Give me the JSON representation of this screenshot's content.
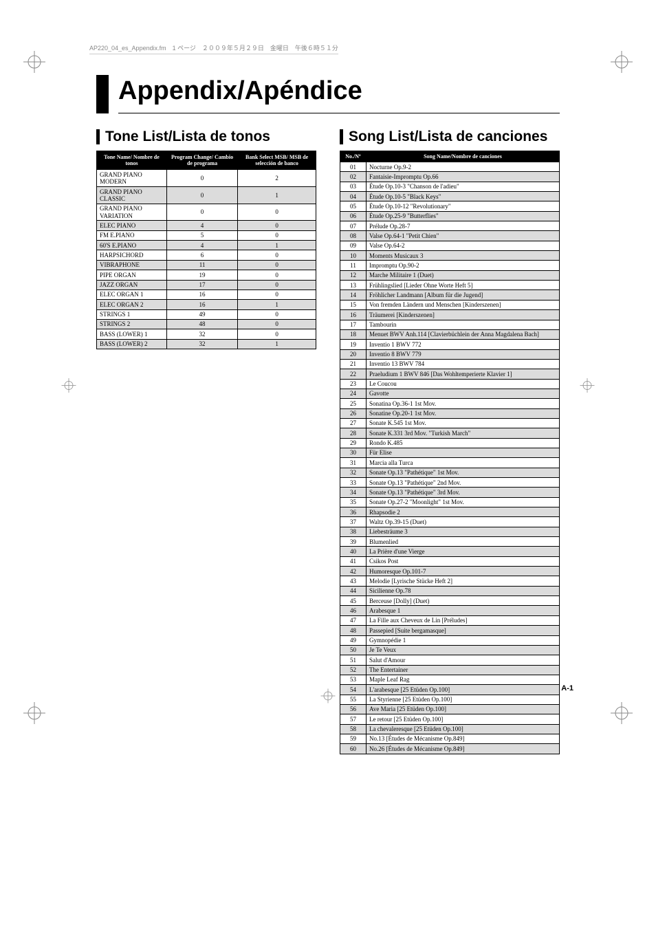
{
  "meta_line": "AP220_04_es_Appendix.fm　1 ページ　２００９年５月２９日　金曜日　午後６時５１分",
  "page_title": "Appendix/Apéndice",
  "page_number": "A-1",
  "tone_section_title": "Tone List/Lista de tonos",
  "tone_headers": {
    "name": "Tone Name/\nNombre de tonos",
    "program": "Program Change/\nCambio de programa",
    "bank": "Bank Select MSB/\nMSB de selección de\nbanco"
  },
  "tones": [
    {
      "name": "GRAND PIANO MODERN",
      "program": "0",
      "bank": "2",
      "alt": false
    },
    {
      "name": "GRAND PIANO CLASSIC",
      "program": "0",
      "bank": "1",
      "alt": true
    },
    {
      "name": "GRAND PIANO VARIATION",
      "program": "0",
      "bank": "0",
      "alt": false
    },
    {
      "name": "ELEC PIANO",
      "program": "4",
      "bank": "0",
      "alt": true
    },
    {
      "name": "FM E.PIANO",
      "program": "5",
      "bank": "0",
      "alt": false
    },
    {
      "name": "60'S E.PIANO",
      "program": "4",
      "bank": "1",
      "alt": true
    },
    {
      "name": "HARPSICHORD",
      "program": "6",
      "bank": "0",
      "alt": false
    },
    {
      "name": "VIBRAPHONE",
      "program": "11",
      "bank": "0",
      "alt": true
    },
    {
      "name": "PIPE ORGAN",
      "program": "19",
      "bank": "0",
      "alt": false
    },
    {
      "name": "JAZZ ORGAN",
      "program": "17",
      "bank": "0",
      "alt": true
    },
    {
      "name": "ELEC ORGAN 1",
      "program": "16",
      "bank": "0",
      "alt": false
    },
    {
      "name": "ELEC ORGAN 2",
      "program": "16",
      "bank": "1",
      "alt": true
    },
    {
      "name": "STRINGS 1",
      "program": "49",
      "bank": "0",
      "alt": false
    },
    {
      "name": "STRINGS 2",
      "program": "48",
      "bank": "0",
      "alt": true
    },
    {
      "name": "BASS (LOWER) 1",
      "program": "32",
      "bank": "0",
      "alt": false
    },
    {
      "name": "BASS (LOWER) 2",
      "program": "32",
      "bank": "1",
      "alt": true
    }
  ],
  "song_section_title": "Song List/Lista de canciones",
  "song_headers": {
    "no": "No./Nº",
    "name": "Song Name/Nombre de canciones"
  },
  "songs": [
    {
      "no": "01",
      "name": "Nocturne Op.9-2",
      "alt": false
    },
    {
      "no": "02",
      "name": "Fantaisie-Impromptu Op.66",
      "alt": true
    },
    {
      "no": "03",
      "name": "Étude Op.10-3 \"Chanson de l'adieu\"",
      "alt": false
    },
    {
      "no": "04",
      "name": "Étude Op.10-5 \"Black Keys\"",
      "alt": true
    },
    {
      "no": "05",
      "name": "Étude Op.10-12 \"Revolutionary\"",
      "alt": false
    },
    {
      "no": "06",
      "name": "Étude Op.25-9 \"Butterflies\"",
      "alt": true
    },
    {
      "no": "07",
      "name": "Prélude Op.28-7",
      "alt": false
    },
    {
      "no": "08",
      "name": "Valse Op.64-1 \"Petit Chien\"",
      "alt": true
    },
    {
      "no": "09",
      "name": "Valse Op.64-2",
      "alt": false
    },
    {
      "no": "10",
      "name": "Moments Musicaux 3",
      "alt": true
    },
    {
      "no": "11",
      "name": "Impromptu Op.90-2",
      "alt": false
    },
    {
      "no": "12",
      "name": "Marche Militaire 1 (Duet)",
      "alt": true
    },
    {
      "no": "13",
      "name": "Frühlingslied [Lieder Ohne Worte Heft 5]",
      "alt": false
    },
    {
      "no": "14",
      "name": "Fröhlicher Landmann [Album für die Jugend]",
      "alt": true
    },
    {
      "no": "15",
      "name": "Von fremden Ländern und Menschen [Kinderszenen]",
      "alt": false
    },
    {
      "no": "16",
      "name": "Träumerei [Kinderszenen]",
      "alt": true
    },
    {
      "no": "17",
      "name": "Tambourin",
      "alt": false
    },
    {
      "no": "18",
      "name": "Menuet BWV Anh.114 [Clavierbüchlein der Anna Magdalena Bach]",
      "alt": true
    },
    {
      "no": "19",
      "name": "Inventio 1 BWV 772",
      "alt": false
    },
    {
      "no": "20",
      "name": "Inventio 8 BWV 779",
      "alt": true
    },
    {
      "no": "21",
      "name": "Inventio 13 BWV 784",
      "alt": false
    },
    {
      "no": "22",
      "name": "Praeludium 1 BWV 846 [Das Wohltemperierte Klavier 1]",
      "alt": true
    },
    {
      "no": "23",
      "name": "Le Coucou",
      "alt": false
    },
    {
      "no": "24",
      "name": "Gavotte",
      "alt": true
    },
    {
      "no": "25",
      "name": "Sonatina Op.36-1 1st Mov.",
      "alt": false
    },
    {
      "no": "26",
      "name": "Sonatine Op.20-1 1st Mov.",
      "alt": true
    },
    {
      "no": "27",
      "name": "Sonate K.545 1st Mov.",
      "alt": false
    },
    {
      "no": "28",
      "name": "Sonate K.331 3rd Mov. \"Turkish March\"",
      "alt": true
    },
    {
      "no": "29",
      "name": "Rondo K.485",
      "alt": false
    },
    {
      "no": "30",
      "name": "Für Elise",
      "alt": true
    },
    {
      "no": "31",
      "name": "Marcia alla Turca",
      "alt": false
    },
    {
      "no": "32",
      "name": "Sonate Op.13 \"Pathétique\" 1st Mov.",
      "alt": true
    },
    {
      "no": "33",
      "name": "Sonate Op.13 \"Pathétique\" 2nd Mov.",
      "alt": false
    },
    {
      "no": "34",
      "name": "Sonate Op.13 \"Pathétique\" 3rd Mov.",
      "alt": true
    },
    {
      "no": "35",
      "name": "Sonate Op.27-2 \"Moonlight\" 1st Mov.",
      "alt": false
    },
    {
      "no": "36",
      "name": "Rhapsodie 2",
      "alt": true
    },
    {
      "no": "37",
      "name": "Waltz Op.39-15 (Duet)",
      "alt": false
    },
    {
      "no": "38",
      "name": "Liebesträume 3",
      "alt": true
    },
    {
      "no": "39",
      "name": "Blumenlied",
      "alt": false
    },
    {
      "no": "40",
      "name": "La Prière d'une Vierge",
      "alt": true
    },
    {
      "no": "41",
      "name": "Csikos Post",
      "alt": false
    },
    {
      "no": "42",
      "name": "Humoresque Op.101-7",
      "alt": true
    },
    {
      "no": "43",
      "name": "Melodie [Lyrische Stücke Heft 2]",
      "alt": false
    },
    {
      "no": "44",
      "name": "Sicilienne Op.78",
      "alt": true
    },
    {
      "no": "45",
      "name": "Berceuse [Dolly] (Duet)",
      "alt": false
    },
    {
      "no": "46",
      "name": "Arabesque 1",
      "alt": true
    },
    {
      "no": "47",
      "name": "La Fille aux Cheveux de Lin [Préludes]",
      "alt": false
    },
    {
      "no": "48",
      "name": "Passepied [Suite bergamasque]",
      "alt": true
    },
    {
      "no": "49",
      "name": "Gymnopédie 1",
      "alt": false
    },
    {
      "no": "50",
      "name": "Je Te Veux",
      "alt": true
    },
    {
      "no": "51",
      "name": "Salut d'Amour",
      "alt": false
    },
    {
      "no": "52",
      "name": "The Entertainer",
      "alt": true
    },
    {
      "no": "53",
      "name": "Maple Leaf Rag",
      "alt": false
    },
    {
      "no": "54",
      "name": "L'arabesque [25 Etüden Op.100]",
      "alt": true
    },
    {
      "no": "55",
      "name": "La Styrienne [25 Etüden Op.100]",
      "alt": false
    },
    {
      "no": "56",
      "name": "Ave Maria [25 Etüden Op.100]",
      "alt": true
    },
    {
      "no": "57",
      "name": "Le retour [25 Etüden Op.100]",
      "alt": false
    },
    {
      "no": "58",
      "name": "La chevaleresque [25 Etüden Op.100]",
      "alt": true
    },
    {
      "no": "59",
      "name": "No.13 [Études de Mécanisme Op.849]",
      "alt": false
    },
    {
      "no": "60",
      "name": "No.26 [Études de Mécanisme Op.849]",
      "alt": true
    }
  ]
}
